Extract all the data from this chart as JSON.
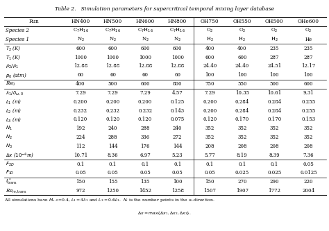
{
  "title": "Table 2.   Simulation parameters for supercritical temporal mixing layer database",
  "columns": [
    "Run",
    "HN400",
    "HN500",
    "HN600",
    "HN800",
    "OH750",
    "OH550",
    "OH500",
    "OHe600"
  ],
  "rows": [
    [
      "Species 2",
      "C$_7$H$_{16}$",
      "C$_7$H$_{16}$",
      "C$_7$H$_{16}$",
      "C$_7$H$_{16}$",
      "O$_2$",
      "O$_2$",
      "O$_2$",
      "O$_2$"
    ],
    [
      "Species 1",
      "N$_2$",
      "N$_2$",
      "N$_2$",
      "N$_2$",
      "H$_2$",
      "H$_2$",
      "H$_2$",
      "He"
    ],
    [
      "$T_2$ (K)",
      "600",
      "600",
      "600",
      "600",
      "400",
      "400",
      "235",
      "235"
    ],
    [
      "$T_1$ (K)",
      "1000",
      "1000",
      "1000",
      "1000",
      "600",
      "600",
      "287",
      "287"
    ],
    [
      "$\\rho_2/\\rho_1$",
      "12.88",
      "12.88",
      "12.88",
      "12.88",
      "24.40",
      "24.40",
      "24.51",
      "12.17"
    ],
    [
      "$p_0$ (atm)",
      "60",
      "60",
      "60",
      "60",
      "100",
      "100",
      "100",
      "100"
    ],
    [
      "Re$_0$",
      "400",
      "500",
      "600",
      "800",
      "750",
      "550",
      "500",
      "600"
    ],
    [
      "$\\lambda_1/\\delta_{\\omega,0}$",
      "7.29",
      "7.29",
      "7.29",
      "4.57",
      "7.29",
      "10.35",
      "10.61",
      "9.31"
    ],
    [
      "$L_1$ (m)",
      "0.200",
      "0.200",
      "0.200",
      "0.125",
      "0.200",
      "0.284",
      "0.284",
      "0.255"
    ],
    [
      "$L_2$ (m)",
      "0.232",
      "0.232",
      "0.232",
      "0.143",
      "0.200",
      "0.284",
      "0.284",
      "0.255"
    ],
    [
      "$L_3$ (m)",
      "0.120",
      "0.120",
      "0.120",
      "0.075",
      "0.120",
      "0.170",
      "0.170",
      "0.153"
    ],
    [
      "$N_1$",
      "192",
      "240",
      "288",
      "240",
      "352",
      "352",
      "352",
      "352"
    ],
    [
      "$N_2$",
      "224",
      "288",
      "336",
      "272",
      "352",
      "352",
      "352",
      "352"
    ],
    [
      "$N_3$",
      "112",
      "144",
      "176",
      "144",
      "208",
      "208",
      "208",
      "208"
    ],
    [
      "$\\Delta x$ ($10^{-4}$m)",
      "10.71",
      "8.36",
      "6.97",
      "5.23",
      "5.77",
      "8.19",
      "8.39",
      "7.36"
    ],
    [
      "$F_{2D}$",
      "0.1",
      "0.1",
      "0.1",
      "0.1",
      "0.1",
      "0.1",
      "0.1",
      "0.05"
    ],
    [
      "$F_{3D}$",
      "0.05",
      "0.05",
      "0.05",
      "0.05",
      "0.05",
      "0.025",
      "0.025",
      "0.0125"
    ],
    [
      "$t^*_{\\mathrm{trans}}$",
      "150",
      "155",
      "135",
      "100",
      "150",
      "270",
      "290",
      "220"
    ],
    [
      "Re$_{m,\\mathrm{trans}}$",
      "972",
      "1250",
      "1452",
      "1258",
      "1507",
      "1907",
      "1772",
      "2004"
    ]
  ],
  "footer1": "All simulations have $M_{c,0}$=0.4, $L_1 = 4\\lambda_1$ and $L_3 = 0.6L_1$.  $N_i$ is the number points in the $x_i$-direction.",
  "footer2": "$\\Delta x = \\max\\{\\Delta x_1, \\Delta x_2, \\Delta x_3\\}$.",
  "hlines_after_rows": [
    1,
    5,
    6,
    14,
    16
  ],
  "col_widths_rel": [
    1.72,
    0.92,
    0.92,
    0.92,
    0.92,
    0.92,
    0.92,
    0.92,
    1.02
  ]
}
